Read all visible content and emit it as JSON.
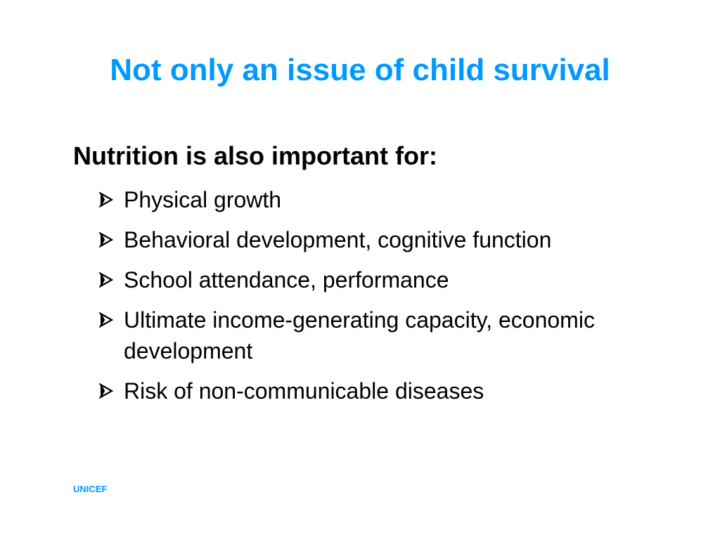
{
  "slide": {
    "title": "Not only an issue of child survival",
    "subheading": "Nutrition is also important for:",
    "bullets": [
      {
        "text": "Physical growth",
        "icon": "arrow-bullet-icon"
      },
      {
        "text": "Behavioral development, cognitive function",
        "icon": "arrow-bullet-icon"
      },
      {
        "text": "School attendance, performance",
        "icon": "arrow-bullet-icon"
      },
      {
        "text": "Ultimate income-generating capacity, economic development",
        "icon": "arrow-bullet-icon"
      },
      {
        "text": "Risk of non-communicable diseases",
        "icon": "arrow-bullet-icon"
      }
    ],
    "footer": "UNICEF"
  },
  "colors": {
    "title": "#0099ff",
    "body_text": "#000000",
    "footer": "#0099ff",
    "background": "#ffffff"
  }
}
